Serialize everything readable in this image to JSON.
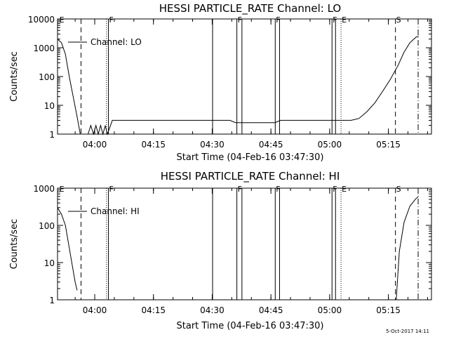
{
  "stamp": "5-Oct-2017 14:11",
  "chart_data": [
    {
      "type": "line",
      "title": "HESSI PARTICLE_RATE Channel: LO",
      "xlabel": "Start Time (04-Feb-16 03:47:30)",
      "ylabel": "Counts/sec",
      "y_scale": "log",
      "ylim": [
        1,
        10000
      ],
      "xlim_minutes": [
        3.0,
        98.5
      ],
      "x_tick_labels": [
        "04:00",
        "04:15",
        "04:30",
        "04:45",
        "05:00",
        "05:15"
      ],
      "x_tick_minutes": [
        12.5,
        27.5,
        42.5,
        57.5,
        72.5,
        87.5
      ],
      "y_tick_labels": [
        "1",
        "10",
        "100",
        "1000",
        "10000"
      ],
      "y_tick_values": [
        1,
        10,
        100,
        1000,
        10000
      ],
      "legend": "Channel: LO",
      "flags": [
        {
          "label": "E",
          "minute": 3.3,
          "style": "none"
        },
        {
          "label": "",
          "minute": 9.0,
          "style": "dashed"
        },
        {
          "label": "",
          "minute": 15.5,
          "style": "dotted"
        },
        {
          "label": "F",
          "minute": 16.0,
          "style": "solid"
        },
        {
          "label": "",
          "minute": 42.6,
          "style": "solid"
        },
        {
          "label": "F",
          "minute": 48.8,
          "style": "solid"
        },
        {
          "label": "",
          "minute": 50.1,
          "style": "solid"
        },
        {
          "label": "F",
          "minute": 58.6,
          "style": "solid"
        },
        {
          "label": "",
          "minute": 59.7,
          "style": "solid"
        },
        {
          "label": "F",
          "minute": 73.1,
          "style": "solid"
        },
        {
          "label": "",
          "minute": 74.0,
          "style": "solid"
        },
        {
          "label": "E",
          "minute": 75.4,
          "style": "dotted"
        },
        {
          "label": "S",
          "minute": 89.3,
          "style": "dashed"
        },
        {
          "label": "",
          "minute": 95.1,
          "style": "dashdot"
        }
      ],
      "series": [
        {
          "name": "Channel: LO",
          "x": [
            3.0,
            4.0,
            5.0,
            6.0,
            7.0,
            8.0,
            8.8,
            10.0,
            10.8,
            11.5,
            12.2,
            12.8,
            13.4,
            14.0,
            14.6,
            15.2,
            15.7,
            16.2,
            17.0,
            20.0,
            25.0,
            30.0,
            35.0,
            40.0,
            43.0,
            47.0,
            48.5,
            50.5,
            53.0,
            56.0,
            58.5,
            60.0,
            63.0,
            66.0,
            70.0,
            73.0,
            74.0,
            76.0,
            78.0,
            80.0,
            82.0,
            84.0,
            86.0,
            88.0,
            90.0,
            91.5,
            93.0,
            94.5,
            95.2
          ],
          "y": [
            2000,
            1500,
            600,
            100,
            20,
            4,
            1,
            null,
            1,
            2,
            1,
            2,
            1,
            2,
            1,
            2,
            1,
            1.5,
            3,
            3,
            3,
            3,
            3,
            3,
            3,
            3,
            2.5,
            2.5,
            2.5,
            2.5,
            2.5,
            3,
            3,
            3,
            3,
            3,
            3,
            3,
            3,
            3.5,
            6,
            12,
            30,
            80,
            250,
            700,
            1500,
            2300,
            2600
          ]
        }
      ]
    },
    {
      "type": "line",
      "title": "HESSI PARTICLE_RATE Channel: HI",
      "xlabel": "Start Time (04-Feb-16 03:47:30)",
      "ylabel": "Counts/sec",
      "y_scale": "log",
      "ylim": [
        1,
        1000
      ],
      "xlim_minutes": [
        3.0,
        98.5
      ],
      "x_tick_labels": [
        "04:00",
        "04:15",
        "04:30",
        "04:45",
        "05:00",
        "05:15"
      ],
      "x_tick_minutes": [
        12.5,
        27.5,
        42.5,
        57.5,
        72.5,
        87.5
      ],
      "y_tick_labels": [
        "1",
        "10",
        "100",
        "1000"
      ],
      "y_tick_values": [
        1,
        10,
        100,
        1000
      ],
      "legend": "Channel: HI",
      "flags": [
        {
          "label": "E",
          "minute": 3.3,
          "style": "none"
        },
        {
          "label": "",
          "minute": 9.0,
          "style": "dashed"
        },
        {
          "label": "",
          "minute": 15.5,
          "style": "dotted"
        },
        {
          "label": "F",
          "minute": 16.0,
          "style": "solid"
        },
        {
          "label": "",
          "minute": 42.6,
          "style": "solid"
        },
        {
          "label": "F",
          "minute": 48.8,
          "style": "solid"
        },
        {
          "label": "",
          "minute": 50.1,
          "style": "solid"
        },
        {
          "label": "F",
          "minute": 58.6,
          "style": "solid"
        },
        {
          "label": "",
          "minute": 59.7,
          "style": "solid"
        },
        {
          "label": "F",
          "minute": 73.1,
          "style": "solid"
        },
        {
          "label": "",
          "minute": 74.0,
          "style": "solid"
        },
        {
          "label": "E",
          "minute": 75.4,
          "style": "dotted"
        },
        {
          "label": "S",
          "minute": 89.3,
          "style": "dashed"
        },
        {
          "label": "",
          "minute": 95.1,
          "style": "dashdot"
        }
      ],
      "series": [
        {
          "name": "Channel: HI",
          "x": [
            3.0,
            4.0,
            5.0,
            6.0,
            6.8,
            7.5,
            8.0,
            null,
            89.5,
            90.3,
            91.5,
            93.0,
            94.5,
            95.1
          ],
          "y": [
            300,
            200,
            100,
            25,
            8,
            3,
            1.8,
            null,
            1,
            20,
            120,
            330,
            520,
            580
          ]
        }
      ]
    }
  ]
}
